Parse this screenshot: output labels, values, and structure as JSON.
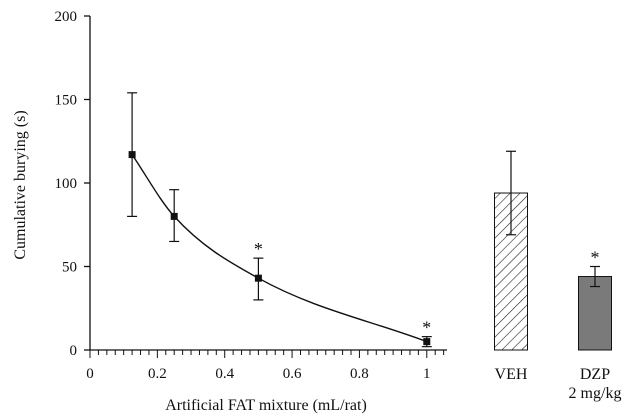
{
  "chart_data": {
    "type": "line",
    "title": "",
    "xlabel": "Artificial FAT mixture (mL/rat)",
    "ylabel": "Cumulative burying (s)",
    "xlim": [
      0,
      1.06
    ],
    "ylim": [
      0,
      200
    ],
    "x_ticks": [
      "0",
      "0.2",
      "0.4",
      "0.6",
      "0.8",
      "1"
    ],
    "y_ticks": [
      "0",
      "50",
      "100",
      "150",
      "200"
    ],
    "grid": false,
    "legend": "none",
    "series": [
      {
        "curve": "fitted",
        "points": [
          {
            "x": 0.125,
            "y": 117,
            "err_low": 80,
            "err_high": 154,
            "sig": ""
          },
          {
            "x": 0.25,
            "y": 80,
            "err_low": 65,
            "err_high": 96,
            "sig": ""
          },
          {
            "x": 0.5,
            "y": 43,
            "err_low": 30,
            "err_high": 55,
            "sig": "*"
          },
          {
            "x": 1.0,
            "y": 5,
            "err_low": 2,
            "err_high": 8,
            "sig": "*"
          }
        ]
      }
    ],
    "controls": [
      {
        "label": "VEH",
        "sublabel": "",
        "value": 94,
        "err_low": 69,
        "err_high": 119,
        "fill": "hatched",
        "sig": ""
      },
      {
        "label": "DZP",
        "sublabel": "2 mg/kg",
        "value": 44,
        "err_low": 38,
        "err_high": 50,
        "fill": "#7a7a7a",
        "sig": "*"
      }
    ],
    "colors": {
      "line": "#111111",
      "marker": "#111111",
      "axis": "#111111",
      "dzp_fill": "#7a7a7a"
    }
  }
}
